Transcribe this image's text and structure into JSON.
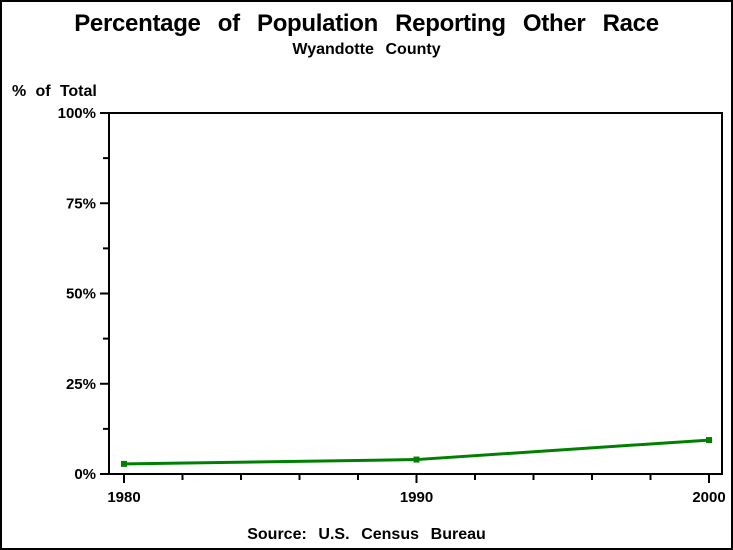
{
  "figure": {
    "background_color": "#ffffff",
    "frame_color": "#000000"
  },
  "chart_data": {
    "type": "line",
    "title": "Percentage of Population Reporting Other Race",
    "subtitle": "Wyandotte County",
    "y_axis_title": "% of Total",
    "source_note": "Source: U.S. Census Bureau",
    "x": [
      1980,
      1990,
      2000
    ],
    "series": [
      {
        "name": "percent-other-race",
        "values": [
          2.8,
          4.0,
          9.4
        ],
        "color": "#008000"
      }
    ],
    "xlim": [
      1980,
      2000
    ],
    "ylim": [
      0,
      100
    ],
    "x_ticks_major": [
      1980,
      1990,
      2000
    ],
    "x_tick_labels": [
      "1980",
      "1990",
      "2000"
    ],
    "x_minor_step": 2,
    "y_ticks_major": [
      0,
      25,
      50,
      75,
      100
    ],
    "y_tick_labels": [
      "0%",
      "25%",
      "50%",
      "75%",
      "100%"
    ],
    "y_ticks_minor": [
      12.5,
      37.5,
      62.5,
      87.5
    ],
    "grid": false,
    "legend_position": "none",
    "framed_plot_area": true,
    "marker_shape": "square"
  }
}
